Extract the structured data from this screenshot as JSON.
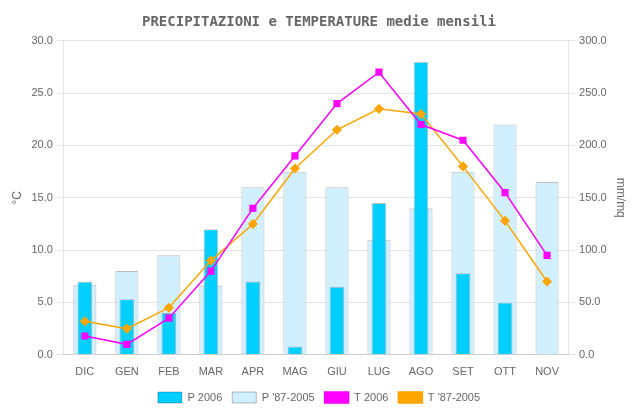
{
  "chart_data": {
    "type": "bar",
    "title": "PRECIPITAZIONI e TEMPERATURE medie mensili",
    "categories": [
      "DIC",
      "GEN",
      "FEB",
      "MAR",
      "APR",
      "MAG",
      "GIU",
      "LUG",
      "AGO",
      "SET",
      "OTT",
      "NOV"
    ],
    "series": [
      {
        "name": "P 2006",
        "type": "bar",
        "color": "#00CFFF",
        "values": [
          7.0,
          5.3,
          4.0,
          12.0,
          7.0,
          0.8,
          6.5,
          14.5,
          28.0,
          7.8,
          5.0,
          0.0
        ]
      },
      {
        "name": "P '87-2005",
        "type": "bar",
        "color": "#D0EFFF",
        "values": [
          6.7,
          8.0,
          9.5,
          6.6,
          16.0,
          17.5,
          16.0,
          11.0,
          14.0,
          17.5,
          22.0,
          16.5
        ]
      },
      {
        "name": "T 2006",
        "type": "line",
        "color": "#FF00FF",
        "marker": "square",
        "values": [
          1.8,
          1.0,
          3.5,
          8.0,
          14.0,
          19.0,
          24.0,
          27.0,
          22.0,
          20.5,
          15.5,
          9.5
        ]
      },
      {
        "name": "T '87-2005",
        "type": "line",
        "color": "#FFA500",
        "marker": "diamond",
        "values": [
          3.2,
          2.5,
          4.5,
          9.0,
          12.5,
          17.8,
          21.5,
          23.5,
          23.0,
          18.0,
          12.8,
          7.0
        ]
      }
    ],
    "ylabel": "°C",
    "y2label": "mm/mq",
    "ylim": [
      0,
      30
    ],
    "yticks": [
      {
        "value": 0,
        "label": "0.0"
      },
      {
        "value": 5,
        "label": "5.0"
      },
      {
        "value": 10,
        "label": "10.0"
      },
      {
        "value": 15,
        "label": "15.0"
      },
      {
        "value": 20,
        "label": "20.0"
      },
      {
        "value": 25,
        "label": "25.0"
      },
      {
        "value": 30,
        "label": "30.0"
      }
    ],
    "y2lim": [
      0,
      300
    ],
    "y2ticks": [
      {
        "value": 0,
        "label": "0.0"
      },
      {
        "value": 50,
        "label": "50.0"
      },
      {
        "value": 100,
        "label": "100.0"
      },
      {
        "value": 150,
        "label": "150.0"
      },
      {
        "value": 200,
        "label": "200.0"
      },
      {
        "value": 250,
        "label": "250.0"
      },
      {
        "value": 300,
        "label": "300.0"
      }
    ],
    "grid": true,
    "legend": "bottom"
  }
}
